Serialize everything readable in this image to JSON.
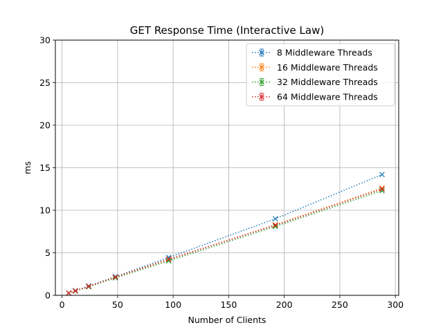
{
  "chart_data": {
    "type": "line",
    "title": "GET Response Time (Interactive Law)",
    "xlabel": "Number of Clients",
    "ylabel": "ms",
    "xlim": [
      -6,
      303
    ],
    "ylim": [
      0,
      30
    ],
    "xticks": [
      0,
      50,
      100,
      150,
      200,
      250,
      300
    ],
    "yticks": [
      0,
      5,
      10,
      15,
      20,
      25,
      30
    ],
    "grid": true,
    "legend_position": "top-right",
    "marker": "x",
    "line_style": "dotted",
    "x": [
      6,
      12,
      24,
      48,
      96,
      192,
      288
    ],
    "series": [
      {
        "name": "8 Middleware Threads",
        "color": "#1f77b4",
        "values": [
          0.28,
          0.56,
          1.1,
          2.2,
          4.45,
          9.0,
          14.2
        ]
      },
      {
        "name": "16 Middleware Threads",
        "color": "#ff7f0e",
        "values": [
          0.27,
          0.52,
          1.05,
          2.1,
          4.2,
          8.3,
          12.6
        ]
      },
      {
        "name": "32 Middleware Threads",
        "color": "#2ca02c",
        "values": [
          0.26,
          0.5,
          1.0,
          2.05,
          4.05,
          8.1,
          12.3
        ]
      },
      {
        "name": "64 Middleware Threads",
        "color": "#d62728",
        "values": [
          0.27,
          0.52,
          1.05,
          2.15,
          4.25,
          8.25,
          12.5
        ]
      }
    ]
  }
}
